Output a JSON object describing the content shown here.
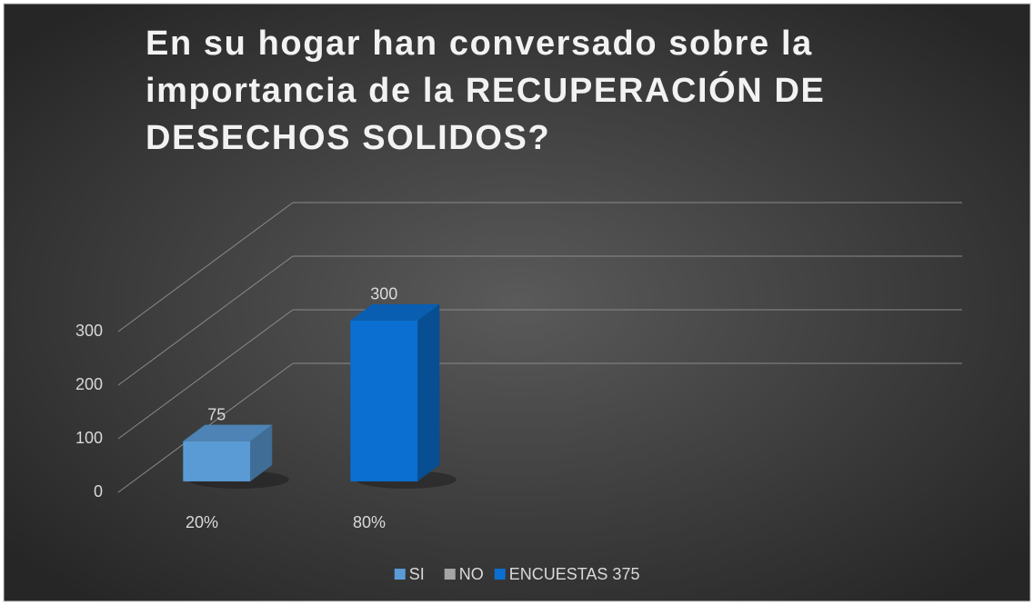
{
  "chart_data": {
    "type": "bar3d",
    "title": "En su hogar han conversado sobre la importancia de la RECUPERACIÓN DE DESECHOS SOLIDOS?",
    "categories": [
      "20%",
      "80%",
      null,
      null
    ],
    "series": [
      {
        "name": "SI",
        "color": "#5b9bd5",
        "values": [
          75,
          null,
          null,
          null
        ]
      },
      {
        "name": "NO",
        "color": "#a5a5a5",
        "values": [
          null,
          null,
          null,
          null
        ]
      },
      {
        "name": "ENCUESTAS 375",
        "color": "#0a6fd0",
        "values": [
          null,
          300,
          null,
          null
        ]
      }
    ],
    "ylim": [
      0,
      300
    ],
    "yticks": [
      0,
      100,
      200,
      300
    ],
    "grid": true,
    "legend": "bottom"
  }
}
